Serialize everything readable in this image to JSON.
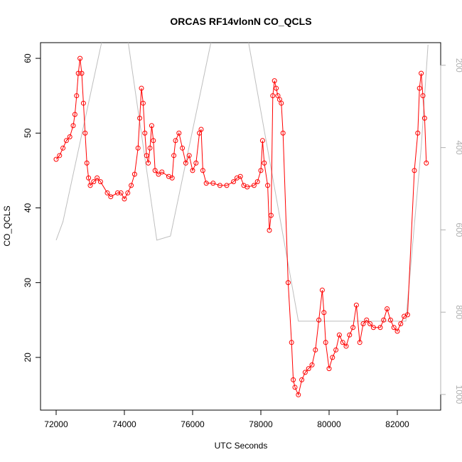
{
  "chart_data": {
    "type": "line",
    "title": "ORCAS RF14vlonN CO_QCLS",
    "xlabel": "UTC Seconds",
    "ylabel": "CO_QCLS",
    "xlim": [
      71542,
      83271
    ],
    "ylim": [
      12.95,
      62.1
    ],
    "y2lim": [
      1038,
      145
    ],
    "xticks": [
      72000,
      74000,
      76000,
      78000,
      80000,
      82000
    ],
    "yticks": [
      20,
      30,
      40,
      50,
      60
    ],
    "y2ticks": [
      200,
      400,
      600,
      800,
      1000
    ],
    "series": [
      {
        "color": "#ff0000",
        "markers": true,
        "x": [
          72000,
          72100,
          72200,
          72300,
          72400,
          72500,
          72550,
          72600,
          72650,
          72700,
          72750,
          72800,
          72850,
          72900,
          72950,
          73000,
          73100,
          73200,
          73300,
          73500,
          73600,
          73800,
          73900,
          74000,
          74100,
          74200,
          74300,
          74400,
          74450,
          74500,
          74550,
          74600,
          74650,
          74700,
          74750,
          74800,
          74850,
          74900,
          75000,
          75100,
          75300,
          75400,
          75450,
          75500,
          75600,
          75700,
          75800,
          75900,
          76000,
          76100,
          76200,
          76250,
          76300,
          76400,
          76600,
          76800,
          77000,
          77200,
          77300,
          77400,
          77500,
          77600,
          77800,
          77900,
          78000,
          78050,
          78100,
          78200,
          78250,
          78300,
          78350,
          78400,
          78450,
          78500,
          78550,
          78600,
          78650,
          78800,
          78900,
          78950,
          79000,
          79100,
          79200,
          79300,
          79400,
          79500,
          79600,
          79700,
          79800,
          79850,
          79900,
          80000,
          80100,
          80200,
          80300,
          80400,
          80500,
          80600,
          80700,
          80800,
          80900,
          81000,
          81100,
          81200,
          81300,
          81500,
          81600,
          81700,
          81800,
          81900,
          82000,
          82100,
          82200,
          82300,
          82500,
          82600,
          82650,
          82700,
          82750,
          82800,
          82850
        ],
        "values": [
          46.5,
          47,
          48,
          49,
          49.5,
          51,
          52.5,
          55,
          58,
          60,
          58,
          54,
          50,
          46,
          44,
          43,
          43.5,
          44,
          43.5,
          42,
          41.5,
          42,
          42,
          41.2,
          42,
          43,
          44.5,
          48,
          52,
          56,
          54,
          50,
          47,
          46,
          48,
          51,
          49,
          45,
          44.5,
          44.8,
          44.2,
          44,
          47,
          49,
          50,
          48,
          46,
          47,
          45,
          46,
          50,
          50.5,
          45,
          43.3,
          43.3,
          43,
          43,
          43.5,
          44,
          44.2,
          43,
          42.8,
          43,
          43.5,
          45,
          49,
          46,
          43,
          37,
          39,
          55,
          57,
          56,
          55,
          54.5,
          54,
          50,
          30,
          22,
          17,
          16,
          15,
          17,
          18,
          18.5,
          19,
          21,
          25,
          29,
          26,
          22,
          18.5,
          20,
          21,
          23,
          22,
          21.5,
          23,
          24,
          27,
          22,
          24.5,
          25,
          24.5,
          24,
          24,
          25,
          26.5,
          25,
          24,
          23.5,
          24.5,
          25.5,
          25.7,
          45,
          50,
          56,
          58,
          55,
          52,
          46
        ]
      },
      {
        "color": "#bebebe",
        "axis": "y2",
        "markers": false,
        "x": [
          72000,
          72200,
          73500,
          74000,
          74950,
          75350,
          76700,
          77500,
          79100,
          82250,
          82700,
          82900
        ],
        "values": [
          625,
          580,
          80,
          80,
          625,
          615,
          80,
          80,
          822,
          822,
          400,
          150
        ]
      }
    ]
  }
}
